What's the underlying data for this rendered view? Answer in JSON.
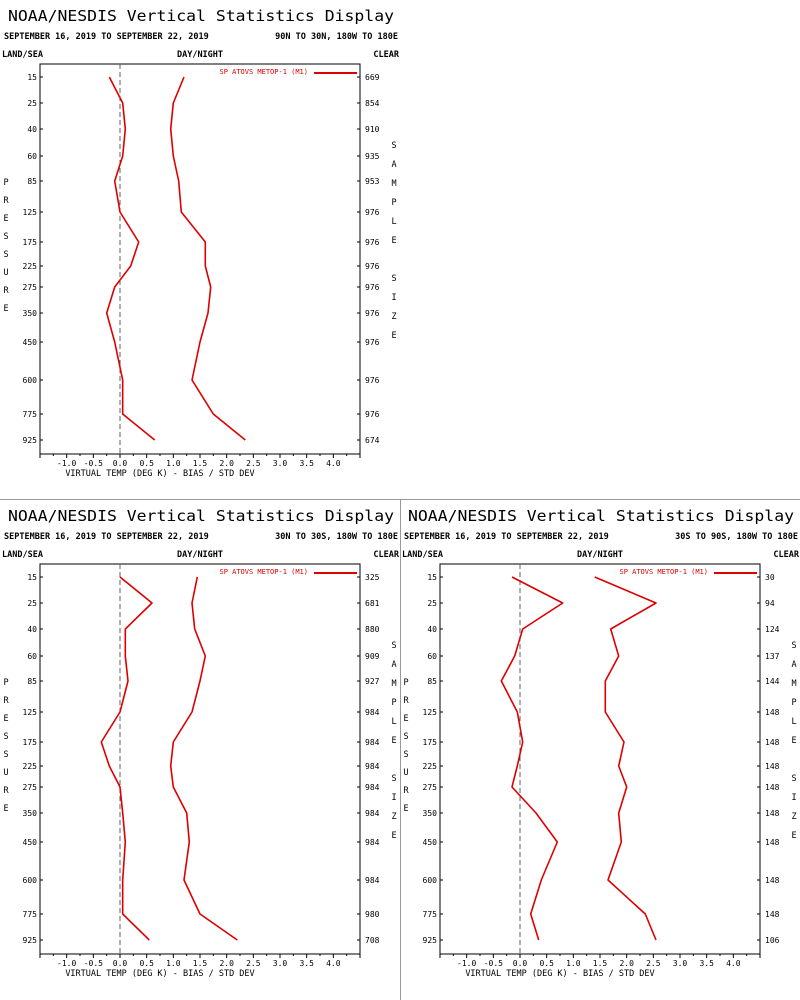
{
  "title": "NOAA/NESDIS Vertical Statistics Display",
  "date_range": "SEPTEMBER 16, 2019 TO SEPTEMBER 22, 2019",
  "labels": {
    "land_sea": "LAND/SEA",
    "day_night": "DAY/NIGHT",
    "clear": "CLEAR",
    "pressure_vertical": "PRESSURE",
    "sample_size_vertical": "SAMPLE SIZE",
    "xlabel": "VIRTUAL TEMP (DEG K) - BIAS / STD DEV"
  },
  "colors": {
    "series": "#dd0000",
    "zero_line": "#606060",
    "frame": "#000000"
  },
  "chart_data": [
    {
      "type": "line",
      "region": "90N TO 30N, 180W TO 180E",
      "legend": "SP ATOVS METOP-1 (M1)",
      "legend_position": "top-right",
      "xlim": [
        -1.5,
        4.5
      ],
      "xticks": [
        "-1.0",
        "-0.5",
        "0.0",
        "0.5",
        "1.0",
        "1.5",
        "2.0",
        "2.5",
        "3.0",
        "3.5",
        "4.0"
      ],
      "pressure_levels": [
        "15",
        "25",
        "40",
        "60",
        "85",
        "125",
        "175",
        "225",
        "275",
        "350",
        "450",
        "600",
        "775",
        "925"
      ],
      "sample_size": [
        "669",
        "854",
        "910",
        "935",
        "953",
        "976",
        "976",
        "976",
        "976",
        "976",
        "976",
        "976",
        "976",
        "674"
      ],
      "series": [
        {
          "name": "BIAS",
          "values": [
            -0.2,
            0.05,
            0.1,
            0.05,
            -0.1,
            0.0,
            0.35,
            0.2,
            -0.1,
            -0.25,
            -0.1,
            0.05,
            0.05,
            0.65
          ]
        },
        {
          "name": "STD DEV",
          "values": [
            1.2,
            1.0,
            0.95,
            1.0,
            1.1,
            1.15,
            1.6,
            1.6,
            1.7,
            1.65,
            1.5,
            1.35,
            1.75,
            2.35
          ]
        }
      ]
    },
    {
      "type": "line",
      "region": "30N TO 30S, 180W TO 180E",
      "legend": "SP ATOVS METOP-1 (M1)",
      "legend_position": "top-right",
      "xlim": [
        -1.5,
        4.5
      ],
      "xticks": [
        "-1.0",
        "-0.5",
        "0.0",
        "0.5",
        "1.0",
        "1.5",
        "2.0",
        "2.5",
        "3.0",
        "3.5",
        "4.0"
      ],
      "pressure_levels": [
        "15",
        "25",
        "40",
        "60",
        "85",
        "125",
        "175",
        "225",
        "275",
        "350",
        "450",
        "600",
        "775",
        "925"
      ],
      "sample_size": [
        "325",
        "681",
        "880",
        "909",
        "927",
        "984",
        "984",
        "984",
        "984",
        "984",
        "984",
        "984",
        "980",
        "708"
      ],
      "series": [
        {
          "name": "BIAS",
          "values": [
            0.0,
            0.6,
            0.1,
            0.1,
            0.15,
            0.0,
            -0.35,
            -0.2,
            0.0,
            0.05,
            0.1,
            0.05,
            0.05,
            0.55
          ]
        },
        {
          "name": "STD DEV",
          "values": [
            1.45,
            1.35,
            1.4,
            1.6,
            1.5,
            1.35,
            1.0,
            0.95,
            1.0,
            1.25,
            1.3,
            1.2,
            1.5,
            2.2
          ]
        }
      ]
    },
    {
      "type": "line",
      "region": "30S TO 90S, 180W TO 180E",
      "legend": "SP ATOVS METOP-1 (M1)",
      "legend_position": "top-right",
      "xlim": [
        -1.5,
        4.5
      ],
      "xticks": [
        "-1.0",
        "-0.5",
        "0.0",
        "0.5",
        "1.0",
        "1.5",
        "2.0",
        "2.5",
        "3.0",
        "3.5",
        "4.0"
      ],
      "pressure_levels": [
        "15",
        "25",
        "40",
        "60",
        "85",
        "125",
        "175",
        "225",
        "275",
        "350",
        "450",
        "600",
        "775",
        "925"
      ],
      "sample_size": [
        "30",
        "94",
        "124",
        "137",
        "144",
        "148",
        "148",
        "148",
        "148",
        "148",
        "148",
        "148",
        "148",
        "106"
      ],
      "series": [
        {
          "name": "BIAS",
          "values": [
            -0.15,
            0.8,
            0.05,
            -0.1,
            -0.35,
            -0.05,
            0.05,
            -0.05,
            -0.15,
            0.3,
            0.7,
            0.4,
            0.2,
            0.35
          ]
        },
        {
          "name": "STD DEV",
          "values": [
            1.4,
            2.55,
            1.7,
            1.85,
            1.6,
            1.6,
            1.95,
            1.85,
            2.0,
            1.85,
            1.9,
            1.65,
            2.35,
            2.55
          ]
        }
      ]
    }
  ]
}
